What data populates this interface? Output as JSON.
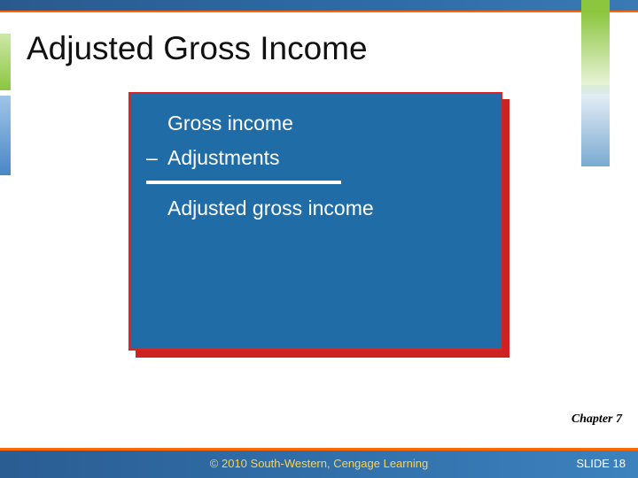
{
  "colors": {
    "topbar_bg_start": "#295a8e",
    "topbar_bg_end": "#3a7ab4",
    "accent_orange": "#ff6600",
    "accent_green": "#8cc63f",
    "box_bg": "#1f6ca6",
    "box_border": "#dd2222",
    "box_shadow": "#cc2222",
    "text_white": "#ffffff",
    "footer_text": "#ffd24a"
  },
  "slide": {
    "title": "Adjusted Gross Income",
    "calc": {
      "line1": {
        "op": "",
        "text": "Gross income"
      },
      "line2": {
        "op": "–",
        "text": "Adjustments"
      },
      "result": {
        "op": "",
        "text": "Adjusted gross income"
      }
    },
    "chapter": "Chapter 7"
  },
  "footer": {
    "copyright": "© 2010 South-Western, Cengage Learning",
    "slide_label": "SLIDE",
    "slide_number": "18"
  }
}
